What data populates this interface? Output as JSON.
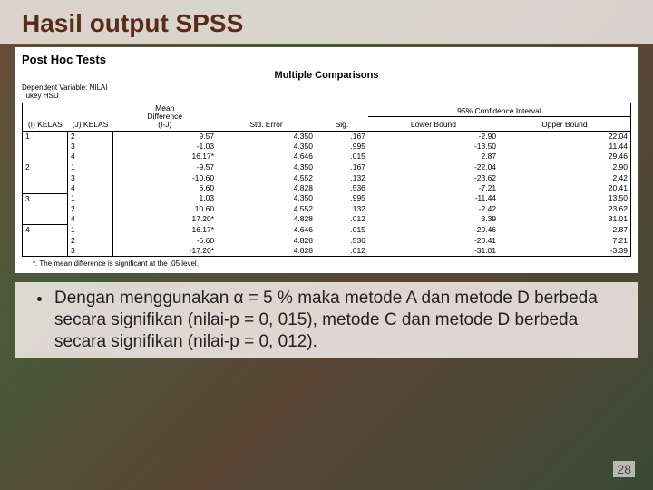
{
  "title": "Hasil output SPSS",
  "posthoc_label": "Post Hoc Tests",
  "mc_title": "Multiple Comparisons",
  "dep_var": "Dependent Variable: NILAI",
  "method": "Tukey HSD",
  "headers": {
    "i": "(I) KELAS",
    "j": "(J) KELAS",
    "meandiff": "Mean\nDifference\n(I-J)",
    "stderr": "Std. Error",
    "sig": "Sig.",
    "ci": "95% Confidence Interval",
    "lower": "Lower Bound",
    "upper": "Upper Bound"
  },
  "rows": [
    {
      "i": "1",
      "j": "2",
      "md": "9.57",
      "se": "4.350",
      "sig": ".167",
      "lb": "-2.90",
      "ub": "22.04"
    },
    {
      "i": "",
      "j": "3",
      "md": "-1.03",
      "se": "4.350",
      "sig": ".995",
      "lb": "-13.50",
      "ub": "11.44"
    },
    {
      "i": "",
      "j": "4",
      "md": "16.17*",
      "se": "4.646",
      "sig": ".015",
      "lb": "2.87",
      "ub": "29.46"
    },
    {
      "i": "2",
      "j": "1",
      "md": "-9.57",
      "se": "4.350",
      "sig": ".167",
      "lb": "-22.04",
      "ub": "2.90"
    },
    {
      "i": "",
      "j": "3",
      "md": "-10.60",
      "se": "4.552",
      "sig": ".132",
      "lb": "-23.62",
      "ub": "2.42"
    },
    {
      "i": "",
      "j": "4",
      "md": "6.60",
      "se": "4.828",
      "sig": ".536",
      "lb": "-7.21",
      "ub": "20.41"
    },
    {
      "i": "3",
      "j": "1",
      "md": "1.03",
      "se": "4.350",
      "sig": ".995",
      "lb": "-11.44",
      "ub": "13.50"
    },
    {
      "i": "",
      "j": "2",
      "md": "10.60",
      "se": "4.552",
      "sig": ".132",
      "lb": "-2.42",
      "ub": "23.62"
    },
    {
      "i": "",
      "j": "4",
      "md": "17.20*",
      "se": "4.828",
      "sig": ".012",
      "lb": "3.39",
      "ub": "31.01"
    },
    {
      "i": "4",
      "j": "1",
      "md": "-16.17*",
      "se": "4.646",
      "sig": ".015",
      "lb": "-29.46",
      "ub": "-2.87"
    },
    {
      "i": "",
      "j": "2",
      "md": "-6.60",
      "se": "4.828",
      "sig": ".536",
      "lb": "-20.41",
      "ub": "7.21"
    },
    {
      "i": "",
      "j": "3",
      "md": "-17.20*",
      "se": "4.828",
      "sig": ".012",
      "lb": "-31.01",
      "ub": "-3.39"
    }
  ],
  "footnote": "*. The mean difference is significant at the .05 level.",
  "bullet": "Dengan menggunakan α = 5 % maka metode A dan metode D berbeda secara signifikan (nilai-p = 0, 015), metode C dan metode D berbeda secara signifikan (nilai-p = 0, 012).",
  "pagenum": "28"
}
